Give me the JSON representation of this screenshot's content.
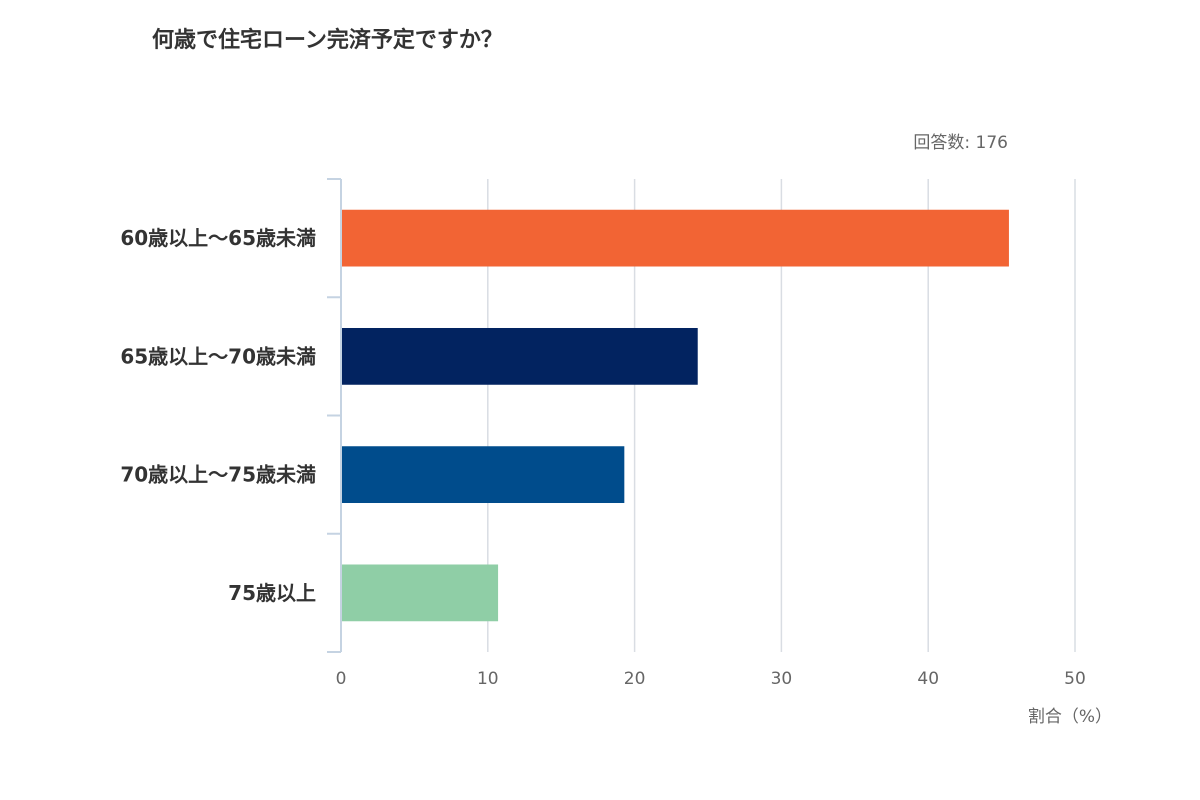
{
  "chart_data": {
    "type": "bar",
    "orientation": "horizontal",
    "title": "何歳で住宅ローン完済予定ですか？",
    "respondents_label": "回答数",
    "respondents_separator": ": ",
    "respondents_value": "176",
    "categories": [
      "60歳以上～65歳未満",
      "65歳以上～70歳未満",
      "70歳以上～75歳未満",
      "75歳以上"
    ],
    "values": [
      45.5,
      24.3,
      19.3,
      10.7
    ],
    "colors": [
      "#f26434",
      "#022360",
      "#004c8c",
      "#8fcea6"
    ],
    "xlabel": "割合（%）",
    "ylabel": "",
    "xlim": [
      0,
      50
    ],
    "xticks": [
      0,
      10,
      20,
      30,
      40,
      50
    ],
    "grid": true,
    "legend": "none"
  }
}
